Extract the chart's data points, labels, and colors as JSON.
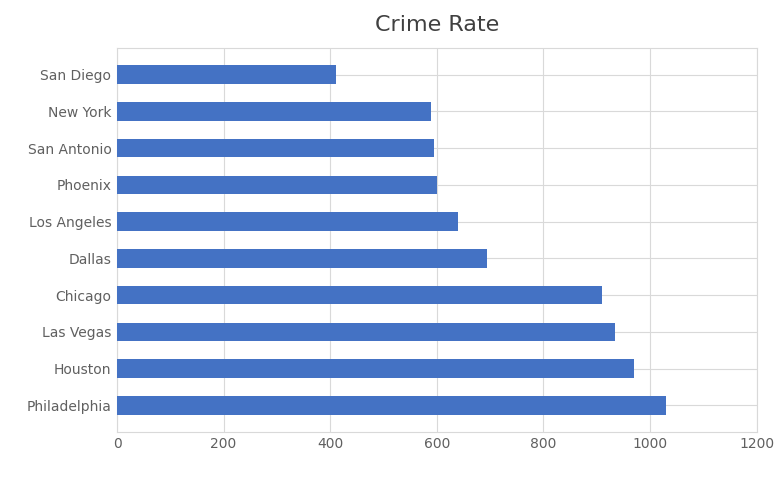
{
  "title": "Crime Rate",
  "categories": [
    "Philadelphia",
    "Houston",
    "Las Vegas",
    "Chicago",
    "Dallas",
    "Los Angeles",
    "Phoenix",
    "San Antonio",
    "New York",
    "San Diego"
  ],
  "values": [
    1030,
    970,
    935,
    910,
    695,
    640,
    600,
    595,
    590,
    410
  ],
  "bar_color": "#4472C4",
  "xlim": [
    0,
    1200
  ],
  "xticks": [
    0,
    200,
    400,
    600,
    800,
    1000,
    1200
  ],
  "title_fontsize": 16,
  "label_fontsize": 10,
  "tick_fontsize": 10,
  "background_color": "#ffffff",
  "grid_color": "#d9d9d9",
  "bar_height": 0.5
}
